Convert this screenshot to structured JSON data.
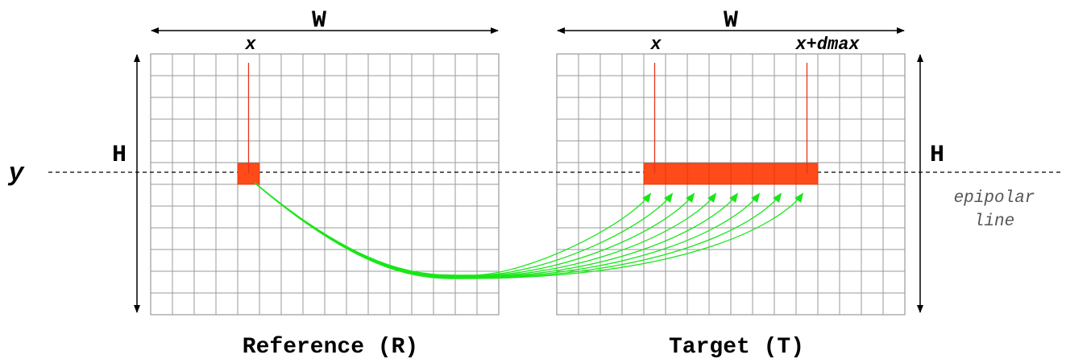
{
  "labels": {
    "width": "W",
    "height": "H",
    "row": "y",
    "x": "x",
    "x_dmax": "x+dmax",
    "epipolar_line_1": "epipolar",
    "epipolar_line_2": "line",
    "reference_caption": "Reference (R)",
    "target_caption": "Target (T)"
  },
  "grid": {
    "columns": 16,
    "rows": 12
  },
  "reference": {
    "pixel_column": 4,
    "pixel_row": 5
  },
  "target": {
    "candidate_start_column": 4,
    "candidate_count": 8
  },
  "colors": {
    "grid_line": "#9a9a9a",
    "pixel_fill": "#ff4a1a",
    "pixel_stroke": "#e03a10",
    "marker_line": "#e8341a",
    "match_curve": "#19e619",
    "axis": "#000000"
  }
}
